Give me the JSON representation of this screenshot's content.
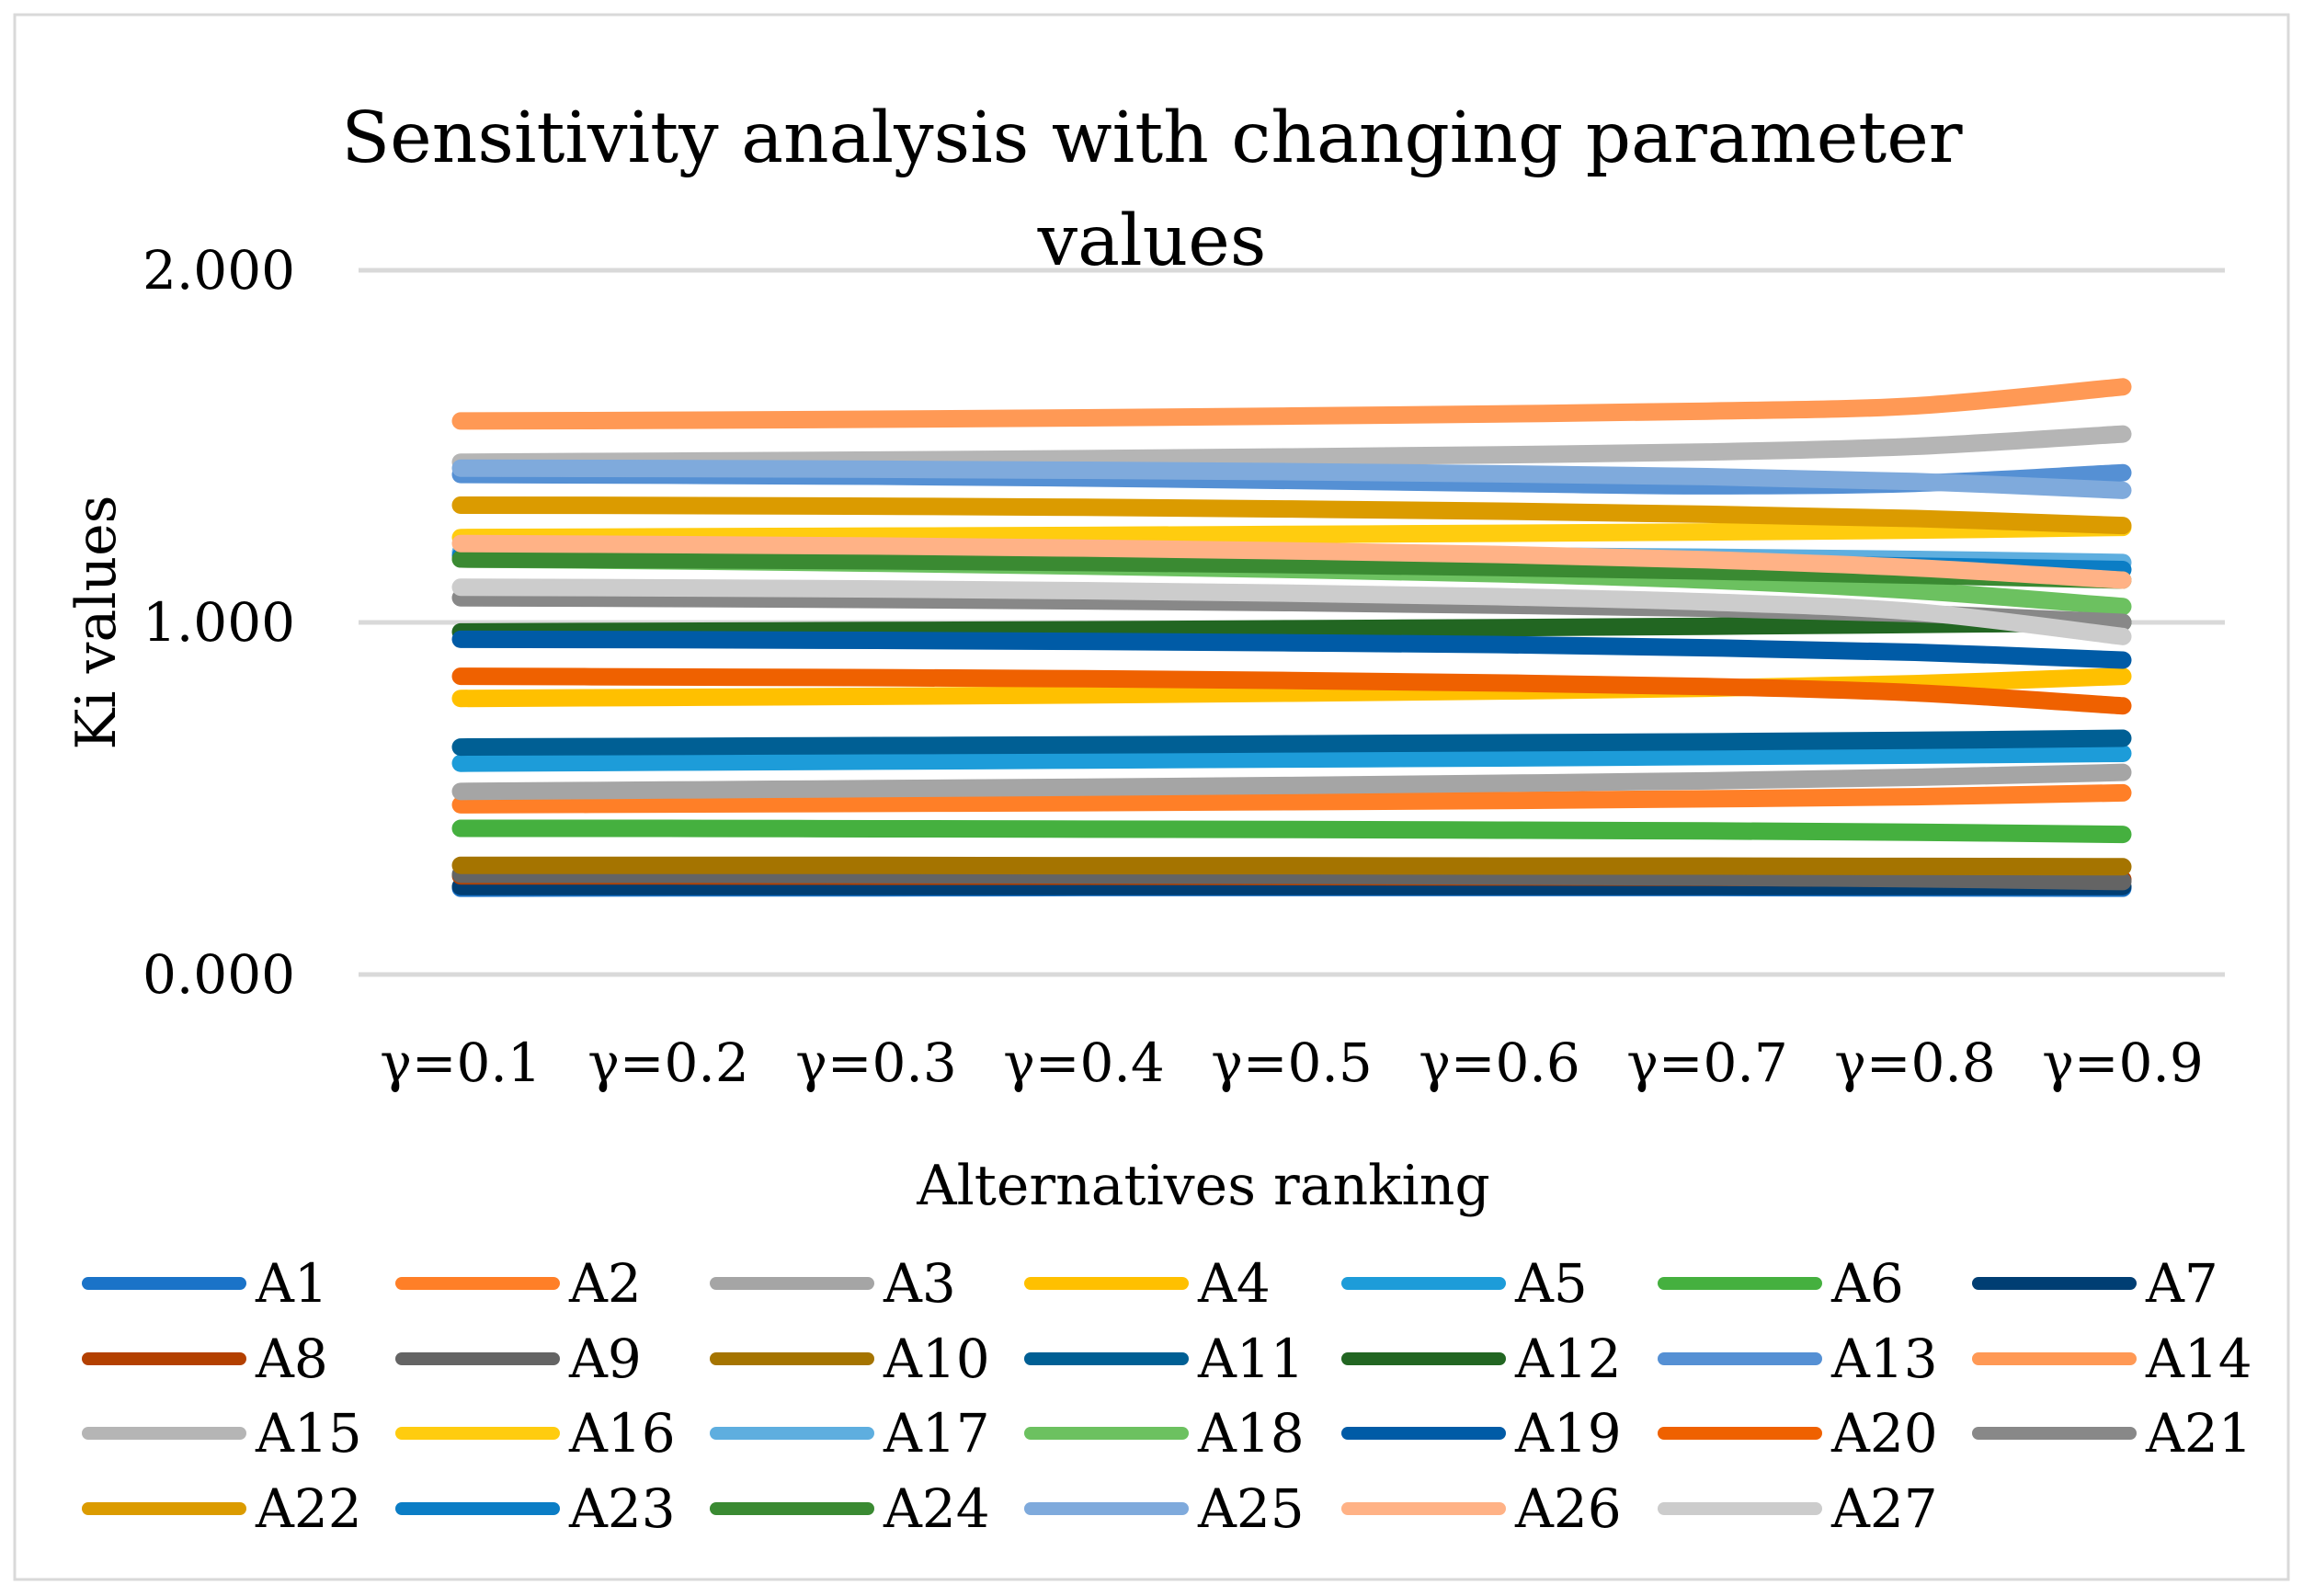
{
  "chart_data": {
    "type": "line",
    "title": "Sensitivity analysis with changing parameter values",
    "title_lines": [
      "Sensitivity analysis with changing parameter",
      "values"
    ],
    "xlabel": "Alternatives ranking",
    "ylabel": "Ki values",
    "categories": [
      "γ=0.1",
      "γ=0.2",
      "γ=0.3",
      "γ=0.4",
      "γ=0.5",
      "γ=0.6",
      "γ=0.7",
      "γ=0.8",
      "γ=0.9"
    ],
    "ylim": [
      0,
      2
    ],
    "yticks": [
      "0.000",
      "1.000",
      "2.000"
    ],
    "ytick_values": [
      0,
      1,
      2
    ],
    "grid": "horizontal",
    "legend_position": "bottom",
    "series": [
      {
        "name": "A1",
        "color": "#1A73C8",
        "values": [
          0.245,
          0.246,
          0.246,
          0.247,
          0.247,
          0.247,
          0.247,
          0.246,
          0.245
        ]
      },
      {
        "name": "A2",
        "color": "#FF7F27",
        "values": [
          0.482,
          0.484,
          0.486,
          0.488,
          0.491,
          0.494,
          0.499,
          0.505,
          0.516
        ]
      },
      {
        "name": "A3",
        "color": "#A5A5A5",
        "values": [
          0.52,
          0.524,
          0.528,
          0.532,
          0.537,
          0.543,
          0.55,
          0.56,
          0.574
        ]
      },
      {
        "name": "A4",
        "color": "#FFC000",
        "values": [
          0.784,
          0.787,
          0.79,
          0.794,
          0.799,
          0.805,
          0.813,
          0.826,
          0.847
        ]
      },
      {
        "name": "A5",
        "color": "#1D9CD9",
        "values": [
          0.6,
          0.603,
          0.606,
          0.609,
          0.612,
          0.615,
          0.619,
          0.623,
          0.628
        ]
      },
      {
        "name": "A6",
        "color": "#45B03F",
        "values": [
          0.415,
          0.415,
          0.414,
          0.413,
          0.412,
          0.41,
          0.408,
          0.404,
          0.398
        ]
      },
      {
        "name": "A7",
        "color": "#003E73",
        "values": [
          0.25,
          0.25,
          0.25,
          0.25,
          0.25,
          0.25,
          0.25,
          0.25,
          0.25
        ]
      },
      {
        "name": "A8",
        "color": "#B34000",
        "values": [
          0.28,
          0.28,
          0.279,
          0.279,
          0.278,
          0.277,
          0.276,
          0.273,
          0.27
        ]
      },
      {
        "name": "A9",
        "color": "#646464",
        "values": [
          0.285,
          0.285,
          0.284,
          0.283,
          0.282,
          0.28,
          0.277,
          0.272,
          0.264
        ]
      },
      {
        "name": "A10",
        "color": "#A57400",
        "values": [
          0.31,
          0.31,
          0.31,
          0.309,
          0.309,
          0.308,
          0.308,
          0.307,
          0.306
        ]
      },
      {
        "name": "A11",
        "color": "#005F94",
        "values": [
          0.646,
          0.648,
          0.65,
          0.652,
          0.655,
          0.658,
          0.661,
          0.665,
          0.671
        ]
      },
      {
        "name": "A12",
        "color": "#226622",
        "values": [
          0.973,
          0.975,
          0.977,
          0.979,
          0.982,
          0.985,
          0.989,
          0.994,
          1.0
        ]
      },
      {
        "name": "A13",
        "color": "#5590D4",
        "values": [
          1.42,
          1.418,
          1.415,
          1.41,
          1.403,
          1.395,
          1.388,
          1.395,
          1.425
        ]
      },
      {
        "name": "A14",
        "color": "#FF9955",
        "values": [
          1.572,
          1.574,
          1.577,
          1.581,
          1.586,
          1.592,
          1.6,
          1.615,
          1.669
        ]
      },
      {
        "name": "A15",
        "color": "#B5B5B5",
        "values": [
          1.455,
          1.458,
          1.461,
          1.465,
          1.47,
          1.476,
          1.484,
          1.5,
          1.535
        ]
      },
      {
        "name": "A16",
        "color": "#FFCC0F",
        "values": [
          1.241,
          1.243,
          1.245,
          1.247,
          1.25,
          1.253,
          1.257,
          1.262,
          1.27
        ]
      },
      {
        "name": "A17",
        "color": "#5EAEDF",
        "values": [
          1.2,
          1.199,
          1.197,
          1.195,
          1.192,
          1.189,
          1.185,
          1.179,
          1.17
        ]
      },
      {
        "name": "A18",
        "color": "#6CC160",
        "values": [
          1.18,
          1.175,
          1.168,
          1.16,
          1.15,
          1.138,
          1.12,
          1.09,
          1.045
        ]
      },
      {
        "name": "A19",
        "color": "#005BA6",
        "values": [
          0.952,
          0.951,
          0.949,
          0.946,
          0.942,
          0.937,
          0.928,
          0.915,
          0.893
        ]
      },
      {
        "name": "A20",
        "color": "#EF6100",
        "values": [
          0.847,
          0.845,
          0.843,
          0.84,
          0.835,
          0.828,
          0.818,
          0.8,
          0.763
        ]
      },
      {
        "name": "A21",
        "color": "#888888",
        "values": [
          1.07,
          1.068,
          1.065,
          1.061,
          1.056,
          1.049,
          1.04,
          1.025,
          1.0
        ]
      },
      {
        "name": "A22",
        "color": "#DB9B00",
        "values": [
          1.333,
          1.332,
          1.33,
          1.327,
          1.322,
          1.316,
          1.307,
          1.295,
          1.275
        ]
      },
      {
        "name": "A23",
        "color": "#0B7DC5",
        "values": [
          1.19,
          1.189,
          1.187,
          1.184,
          1.18,
          1.175,
          1.168,
          1.16,
          1.15
        ]
      },
      {
        "name": "A24",
        "color": "#3A8A32",
        "values": [
          1.18,
          1.178,
          1.175,
          1.17,
          1.164,
          1.156,
          1.146,
          1.134,
          1.12
        ]
      },
      {
        "name": "A25",
        "color": "#7FAADC",
        "values": [
          1.438,
          1.437,
          1.435,
          1.432,
          1.428,
          1.422,
          1.414,
          1.4,
          1.375
        ]
      },
      {
        "name": "A26",
        "color": "#FFB286",
        "values": [
          1.224,
          1.221,
          1.217,
          1.211,
          1.203,
          1.193,
          1.178,
          1.155,
          1.12
        ]
      },
      {
        "name": "A27",
        "color": "#CCCCCC",
        "values": [
          1.1,
          1.098,
          1.095,
          1.09,
          1.083,
          1.073,
          1.058,
          1.03,
          0.96
        ]
      }
    ]
  }
}
